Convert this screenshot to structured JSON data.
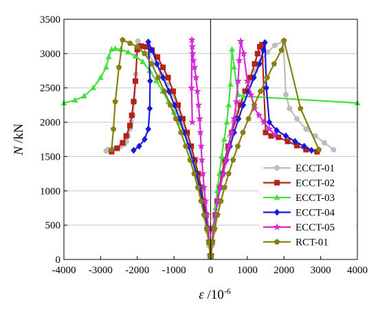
{
  "chart_data": {
    "type": "line",
    "title": "",
    "xlabel_symbol": "ε",
    "xlabel_unit": " /10",
    "xlabel_exp": "-6",
    "ylabel_symbol": "N",
    "ylabel_unit": " /kN",
    "xlim": [
      -4000,
      4000
    ],
    "ylim": [
      0,
      3500
    ],
    "xticks": [
      -4000,
      -3000,
      -2000,
      -1000,
      0,
      1000,
      2000,
      3000,
      4000
    ],
    "xtick_labels": [
      "-4000",
      "-3000",
      "-2000",
      "-1000",
      "0",
      "1000",
      "2000",
      "3000",
      "4000"
    ],
    "yticks": [
      0,
      500,
      1000,
      1500,
      2000,
      2500,
      3000,
      3500
    ],
    "ytick_labels": [
      "0",
      "500",
      "1000",
      "1500",
      "2000",
      "2500",
      "3000",
      "3500"
    ],
    "grid": true,
    "legend_position": "bottom-right",
    "series": [
      {
        "name": "ECCT-01",
        "color": "#bdbdbd",
        "marker": "circle",
        "x": [
          10,
          35,
          70,
          110,
          160,
          220,
          290,
          370,
          450,
          530,
          620,
          720,
          830,
          950,
          1080,
          1220,
          1380,
          1550,
          1750,
          1980,
          2050,
          2150,
          2350,
          2600,
          2850,
          3100,
          3350
        ],
        "y": [
          50,
          200,
          400,
          600,
          800,
          1000,
          1200,
          1400,
          1600,
          1800,
          2000,
          2150,
          2300,
          2450,
          2600,
          2750,
          2900,
          3020,
          3120,
          3180,
          2400,
          2200,
          2050,
          1900,
          1800,
          1700,
          1600
        ],
        "x2": [
          -10,
          -40,
          -80,
          -130,
          -190,
          -260,
          -340,
          -430,
          -530,
          -640,
          -760,
          -890,
          -1030,
          -1180,
          -1340,
          -1510,
          -1690,
          -1880,
          -1980,
          -2000,
          -2040,
          -2080,
          -2120,
          -2160,
          -2200,
          -2250,
          -2300,
          -2350,
          -2450,
          -2600,
          -2800,
          -2850
        ],
        "y2": [
          50,
          200,
          400,
          600,
          800,
          1000,
          1200,
          1400,
          1600,
          1800,
          2000,
          2200,
          2400,
          2550,
          2700,
          2850,
          2980,
          3100,
          3180,
          3100,
          2700,
          2300,
          2100,
          2000,
          1900,
          1800,
          1720,
          1680,
          1650,
          1620,
          1600,
          1580
        ]
      },
      {
        "name": "ECCT-02",
        "color": "#b22418",
        "marker": "square",
        "x": [
          10,
          40,
          80,
          130,
          180,
          240,
          310,
          390,
          480,
          580,
          690,
          810,
          940,
          1080,
          1200,
          1280,
          1340,
          1400,
          1500,
          1650,
          1850,
          2100,
          2350,
          2600,
          2900
        ],
        "y": [
          50,
          250,
          450,
          650,
          850,
          1050,
          1250,
          1450,
          1650,
          1850,
          2050,
          2250,
          2450,
          2650,
          2850,
          3000,
          3100,
          3130,
          1850,
          1800,
          1780,
          1720,
          1660,
          1600,
          1570
        ],
        "x2": [
          -10,
          -40,
          -80,
          -130,
          -190,
          -260,
          -340,
          -430,
          -530,
          -640,
          -760,
          -890,
          -1020,
          -1160,
          -1300,
          -1450,
          -1600,
          -1750,
          -1900,
          -2000,
          -2050,
          -2100,
          -2150,
          -2200,
          -2300,
          -2400,
          -2550,
          -2700
        ],
        "y2": [
          50,
          250,
          450,
          650,
          850,
          1050,
          1250,
          1450,
          1650,
          1850,
          2050,
          2250,
          2450,
          2650,
          2800,
          2950,
          3050,
          3100,
          3110,
          3060,
          2600,
          2300,
          2100,
          1950,
          1800,
          1700,
          1620,
          1570
        ]
      },
      {
        "name": "ECCT-03",
        "color": "#44e03c",
        "marker": "triangle",
        "x": [
          10,
          40,
          80,
          130,
          180,
          240,
          300,
          370,
          440,
          490,
          540,
          580,
          640,
          750,
          900,
          4000
        ],
        "y": [
          50,
          250,
          500,
          750,
          1000,
          1250,
          1500,
          1750,
          2000,
          2250,
          2550,
          3060,
          2800,
          2400,
          2380,
          2280
        ],
        "x2": [
          -10,
          -50,
          -100,
          -160,
          -230,
          -310,
          -400,
          -500,
          -610,
          -730,
          -860,
          -1000,
          -1150,
          -1310,
          -1480,
          -1660,
          -1850,
          -2050,
          -2250,
          -2450,
          -2600,
          -2700,
          -2780,
          -2850,
          -3000,
          -3200,
          -3450,
          -3700,
          -4000
        ],
        "y2": [
          50,
          250,
          450,
          650,
          850,
          1050,
          1250,
          1450,
          1650,
          1850,
          2000,
          2150,
          2300,
          2450,
          2600,
          2750,
          2880,
          2960,
          3020,
          3060,
          3070,
          3060,
          2950,
          2800,
          2650,
          2500,
          2380,
          2320,
          2280
        ]
      },
      {
        "name": "ECCT-04",
        "color": "#1a1ad6",
        "marker": "diamond",
        "x": [
          10,
          40,
          80,
          130,
          190,
          260,
          340,
          430,
          530,
          640,
          760,
          890,
          1030,
          1180,
          1330,
          1440,
          1480,
          1520,
          1600,
          1800,
          2050,
          2300,
          2550,
          2750
        ],
        "y": [
          50,
          250,
          450,
          650,
          850,
          1050,
          1250,
          1450,
          1650,
          1850,
          2050,
          2250,
          2450,
          2650,
          2850,
          3050,
          3160,
          2500,
          2000,
          1880,
          1800,
          1720,
          1650,
          1590
        ],
        "x2": [
          -10,
          -40,
          -90,
          -150,
          -220,
          -300,
          -390,
          -490,
          -600,
          -720,
          -850,
          -990,
          -1140,
          -1300,
          -1460,
          -1600,
          -1700,
          -1650,
          -1660,
          -1700,
          -1800,
          -1950,
          -2100
        ],
        "y2": [
          50,
          250,
          450,
          650,
          850,
          1050,
          1250,
          1450,
          1650,
          1850,
          2050,
          2250,
          2450,
          2650,
          2850,
          3050,
          3170,
          2600,
          2200,
          1900,
          1750,
          1650,
          1590
        ]
      },
      {
        "name": "ECCT-05",
        "color": "#d629d6",
        "marker": "star",
        "x": [
          10,
          40,
          80,
          130,
          190,
          260,
          340,
          420,
          500,
          570,
          640,
          700,
          750,
          780,
          820,
          900,
          1000,
          1100,
          1200,
          1320,
          1450,
          1600,
          1750
        ],
        "y": [
          50,
          250,
          450,
          650,
          850,
          1050,
          1250,
          1450,
          1650,
          1850,
          2050,
          2300,
          2600,
          2900,
          3180,
          3000,
          2600,
          2400,
          2200,
          2100,
          2000,
          1900,
          1820
        ],
        "x2": [
          -10,
          -30,
          -60,
          -100,
          -140,
          -180,
          -210,
          -240,
          -260,
          -280,
          -300,
          -330,
          -360,
          -400,
          -440,
          -470,
          -490,
          -500,
          -510,
          -520,
          -500
        ],
        "y2": [
          50,
          250,
          450,
          650,
          850,
          1050,
          1250,
          1450,
          1650,
          1850,
          2050,
          2250,
          2450,
          2650,
          2800,
          2900,
          3000,
          3100,
          3200,
          2500,
          2000
        ]
      },
      {
        "name": "RCT-01",
        "color": "#858011",
        "marker": "pentagon",
        "x": [
          10,
          50,
          110,
          190,
          280,
          380,
          490,
          610,
          740,
          880,
          1030,
          1190,
          1360,
          1540,
          1730,
          1930,
          2000,
          2450,
          2950
        ],
        "y": [
          50,
          250,
          450,
          650,
          850,
          1050,
          1250,
          1450,
          1650,
          1850,
          2050,
          2250,
          2450,
          2650,
          2850,
          3050,
          3190,
          2200,
          1600
        ],
        "x2": [
          -10,
          -50,
          -110,
          -180,
          -260,
          -350,
          -450,
          -560,
          -680,
          -810,
          -950,
          -1100,
          -1260,
          -1430,
          -1610,
          -1800,
          -2000,
          -2200,
          -2400,
          -2500,
          -2600,
          -2650,
          -2700
        ],
        "y2": [
          50,
          250,
          450,
          650,
          850,
          1050,
          1250,
          1450,
          1650,
          1850,
          2050,
          2250,
          2450,
          2650,
          2850,
          3000,
          3100,
          3150,
          3200,
          2800,
          2300,
          1900,
          1600
        ]
      }
    ]
  }
}
